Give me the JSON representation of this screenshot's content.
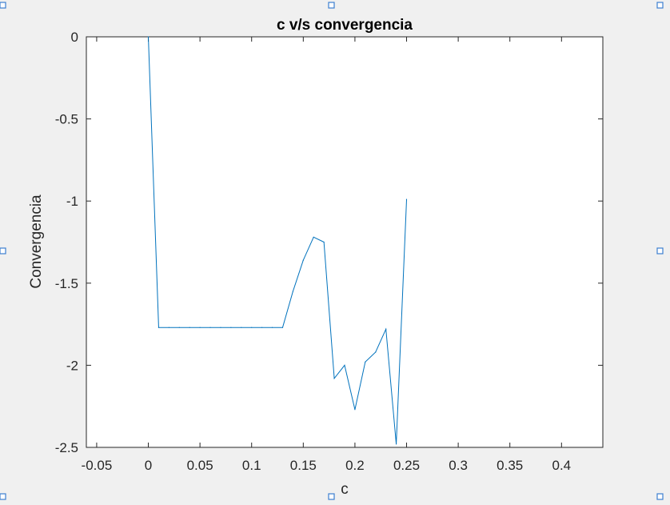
{
  "chart_data": {
    "type": "line",
    "title": "c v/s convergencia",
    "xlabel": "c",
    "ylabel": "Convergencia",
    "xlim": [
      -0.06,
      0.44
    ],
    "ylim": [
      -2.5,
      0
    ],
    "xticks": [
      "-0.05",
      "0",
      "0.05",
      "0.1",
      "0.15",
      "0.2",
      "0.25",
      "0.3",
      "0.35",
      "0.4"
    ],
    "xtick_values": [
      -0.05,
      0,
      0.05,
      0.1,
      0.15,
      0.2,
      0.25,
      0.3,
      0.35,
      0.4
    ],
    "yticks": [
      "0",
      "-0.5",
      "-1",
      "-1.5",
      "-2",
      "-2.5"
    ],
    "ytick_values": [
      0,
      -0.5,
      -1,
      -1.5,
      -2,
      -2.5
    ],
    "grid": false,
    "series": [
      {
        "color": "#0072bd",
        "x": [
          0,
          0.01,
          0.02,
          0.03,
          0.04,
          0.05,
          0.06,
          0.07,
          0.08,
          0.09,
          0.1,
          0.11,
          0.12,
          0.13,
          0.14,
          0.15,
          0.16,
          0.17,
          0.18,
          0.19,
          0.2,
          0.21,
          0.22,
          0.23,
          0.24,
          0.25
        ],
        "y": [
          0,
          -1.77,
          -1.77,
          -1.77,
          -1.77,
          -1.77,
          -1.77,
          -1.77,
          -1.77,
          -1.77,
          -1.77,
          -1.77,
          -1.77,
          -1.77,
          -1.55,
          -1.36,
          -1.22,
          -1.25,
          -2.08,
          -2.0,
          -2.27,
          -1.98,
          -1.92,
          -1.78,
          -2.48,
          -0.99
        ]
      }
    ]
  }
}
